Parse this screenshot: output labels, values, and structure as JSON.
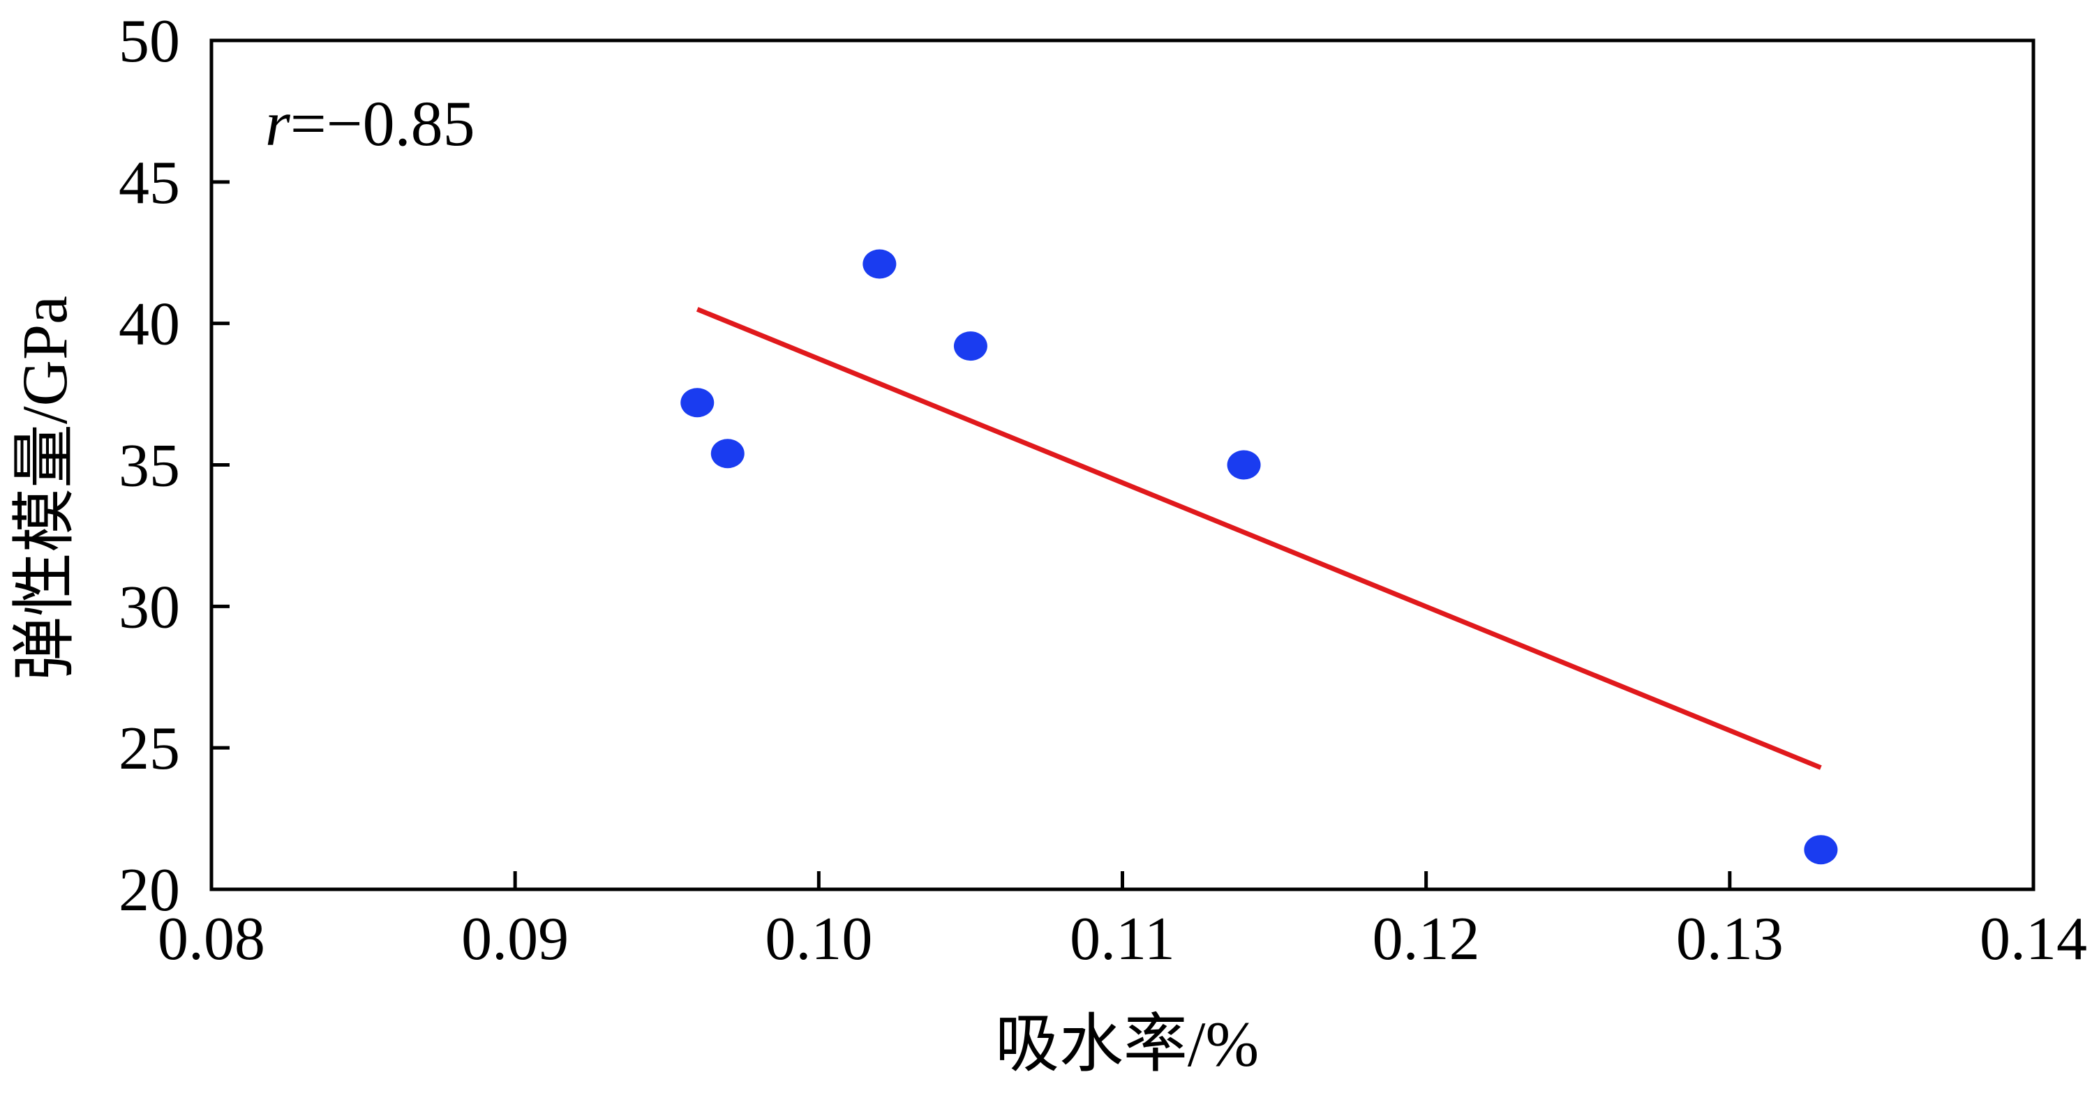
{
  "chart_data": {
    "type": "scatter",
    "title": "",
    "xlabel": "吸水率/%",
    "ylabel": "弹性模量/GPa",
    "xlim": [
      0.08,
      0.14
    ],
    "ylim": [
      20,
      50
    ],
    "xticks": [
      "0.08",
      "0.09",
      "0.10",
      "0.11",
      "0.12",
      "0.13",
      "0.14"
    ],
    "yticks": [
      "20",
      "25",
      "30",
      "35",
      "40",
      "45",
      "50"
    ],
    "grid": false,
    "legend": "none",
    "series": [
      {
        "points": [
          {
            "x": 0.096,
            "y": 37.2
          },
          {
            "x": 0.097,
            "y": 35.4
          },
          {
            "x": 0.102,
            "y": 42.1
          },
          {
            "x": 0.105,
            "y": 39.2
          },
          {
            "x": 0.114,
            "y": 35.0
          },
          {
            "x": 0.133,
            "y": 21.4
          }
        ],
        "color": "#1a3cf0"
      }
    ],
    "fit_line": {
      "from": {
        "x": 0.096,
        "y": 40.5
      },
      "to": {
        "x": 0.133,
        "y": 24.3
      },
      "color": "#e0191c"
    },
    "annotation": {
      "var": "r",
      "rest": "=−0.85"
    }
  }
}
